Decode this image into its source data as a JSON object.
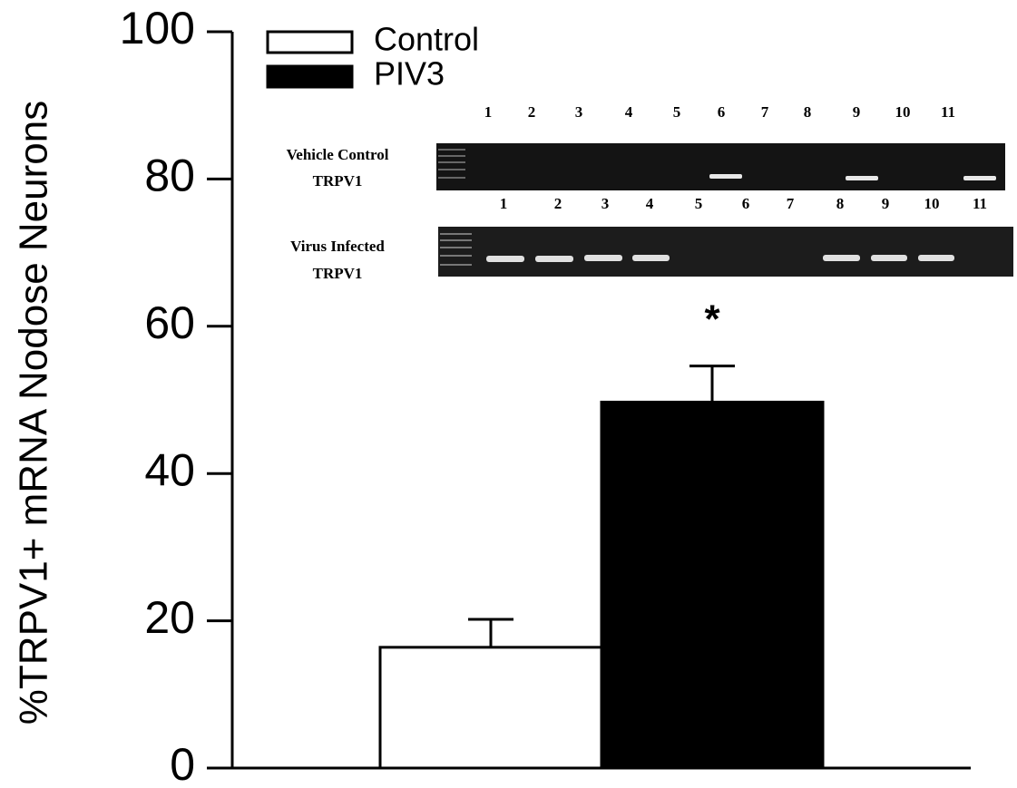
{
  "chart_data": {
    "type": "bar",
    "y_label": "%TRPV1+ mRNA Nodose Neurons",
    "categories": [
      null
    ],
    "series": [
      {
        "name": "Control",
        "color": "#ffffff",
        "values": [
          16.4
        ],
        "errors": [
          3.8
        ]
      },
      {
        "name": "PIV3",
        "color": "#000000",
        "values": [
          49.7
        ],
        "errors": [
          4.9
        ]
      }
    ],
    "ylim": [
      0,
      100
    ],
    "yticks": [
      0,
      20,
      40,
      60,
      80,
      100
    ],
    "annotation": "*",
    "inset": {
      "top_label": [
        "Vehicle Control",
        "TRPV1"
      ],
      "top_lanes": [
        "1",
        "2",
        "3",
        "4",
        "5",
        "6",
        "7",
        "8",
        "9",
        "10",
        "11"
      ],
      "bottom_label": [
        "Virus Infected",
        "TRPV1"
      ],
      "bottom_lanes": [
        "1",
        "2",
        "3",
        "4",
        "5",
        "6",
        "7",
        "8",
        "9",
        "10",
        "11"
      ]
    }
  }
}
